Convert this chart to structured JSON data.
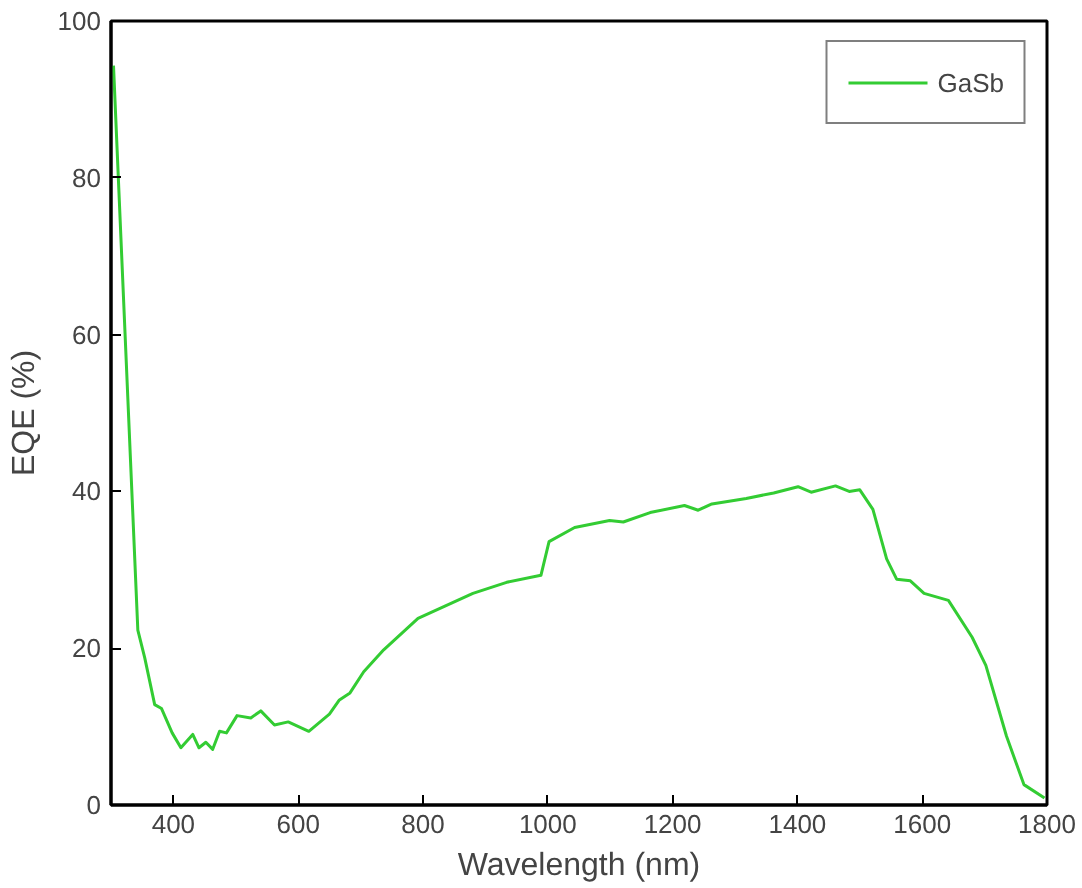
{
  "chart_data": {
    "type": "line",
    "xlabel": "Wavelength (nm)",
    "ylabel": "EQE (%)",
    "xlim": [
      300,
      1800
    ],
    "ylim": [
      0,
      100
    ],
    "xticks": [
      400,
      600,
      800,
      1000,
      1200,
      1400,
      1600,
      1800
    ],
    "yticks": [
      0,
      20,
      40,
      60,
      80,
      100
    ],
    "grid": false,
    "legend": "top right",
    "marker": "none",
    "line_style": "solid",
    "series": [
      {
        "name": "GaSb",
        "color": "#33cc33",
        "x": [
          304,
          343,
          354,
          370,
          381,
          398,
          412,
          431,
          441,
          452,
          463,
          474,
          485,
          502,
          524,
          540,
          562,
          584,
          617,
          650,
          666,
          683,
          705,
          737,
          792,
          836,
          880,
          934,
          989,
          1002,
          1043,
          1099,
          1121,
          1164,
          1219,
          1241,
          1263,
          1318,
          1362,
          1401,
          1422,
          1461,
          1483,
          1500,
          1521,
          1543,
          1559,
          1581,
          1603,
          1642,
          1680,
          1702,
          1735,
          1763,
          1796
        ],
        "values": [
          94.3,
          22.3,
          18.8,
          12.8,
          12.3,
          9.2,
          7.3,
          9,
          7.3,
          8,
          7.1,
          9.4,
          9.2,
          11.4,
          11.1,
          12,
          10.2,
          10.6,
          9.4,
          11.6,
          13.4,
          14.3,
          17,
          19.8,
          23.8,
          25.4,
          27,
          28.4,
          29.3,
          33.6,
          35.4,
          36.3,
          36.1,
          37.3,
          38.2,
          37.6,
          38.4,
          39.1,
          39.8,
          40.6,
          39.9,
          40.7,
          40,
          40.2,
          37.7,
          31.4,
          28.8,
          28.6,
          27,
          26.1,
          21.4,
          17.8,
          8.8,
          2.6,
          0.9
        ]
      }
    ]
  }
}
